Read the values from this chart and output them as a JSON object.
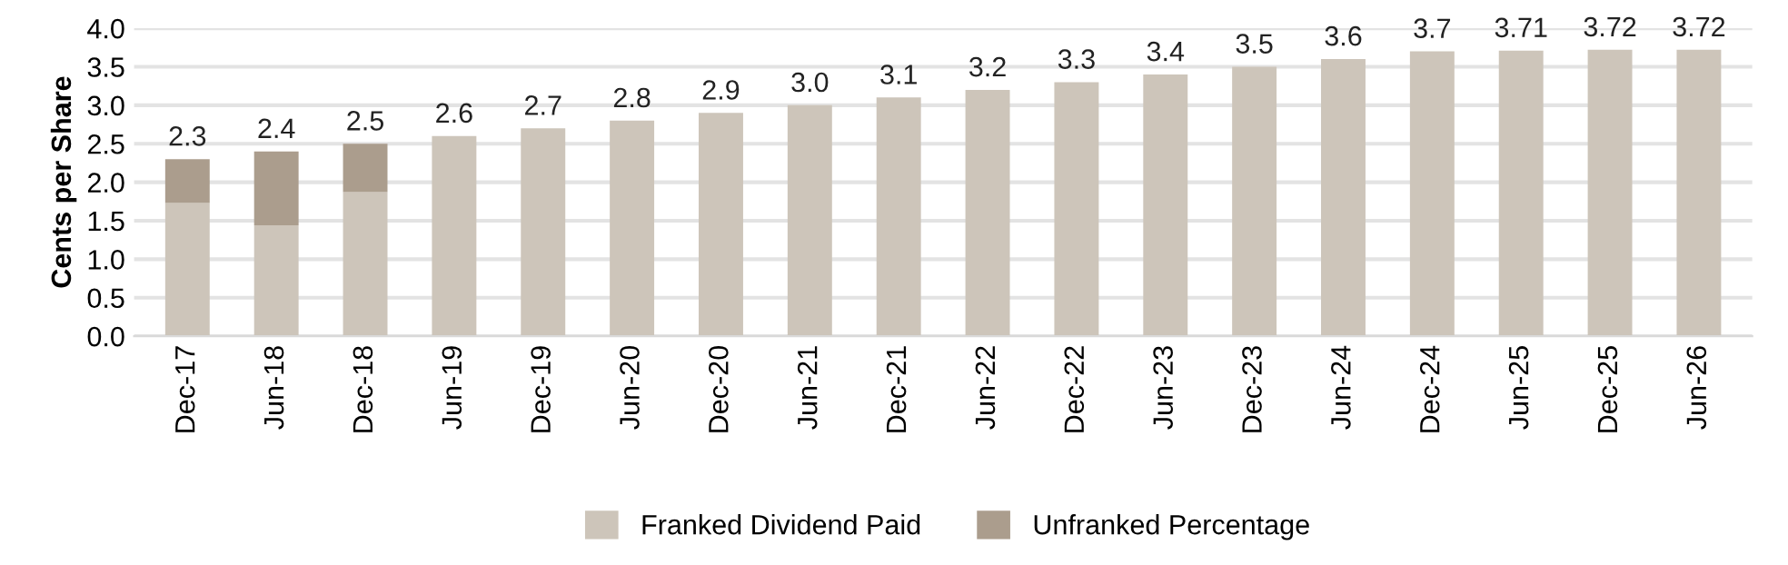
{
  "chart_data": {
    "type": "bar",
    "stacked": true,
    "ylabel": "Cents per Share",
    "categories": [
      "Dec-17",
      "Jun-18",
      "Dec-18",
      "Jun-19",
      "Dec-19",
      "Jun-20",
      "Dec-20",
      "Jun-21",
      "Dec-21",
      "Jun-22",
      "Dec-22",
      "Jun-23",
      "Dec-23",
      "Jun-24",
      "Dec-24",
      "Jun-25",
      "Dec-25",
      "Jun-26"
    ],
    "series": [
      {
        "name": "Franked Dividend Paid",
        "color": "#cdc5ba",
        "values": [
          1.73,
          1.44,
          1.87,
          2.6,
          2.7,
          2.8,
          2.9,
          3.0,
          3.1,
          3.2,
          3.3,
          3.4,
          3.5,
          3.6,
          3.7,
          3.71,
          3.72,
          3.72
        ]
      },
      {
        "name": "Unfranked Percentage",
        "color": "#ab9d8d",
        "values": [
          0.57,
          0.96,
          0.63,
          null,
          null,
          null,
          null,
          null,
          null,
          null,
          null,
          null,
          null,
          null,
          null,
          null,
          null,
          null
        ]
      }
    ],
    "totals": [
      "2.3",
      "2.4",
      "2.5",
      "2.6",
      "2.7",
      "2.8",
      "2.9",
      "3.0",
      "3.1",
      "3.2",
      "3.3",
      "3.4",
      "3.5",
      "3.6",
      "3.7",
      "3.71",
      "3.72",
      "3.72"
    ],
    "ylim": [
      0,
      4.0
    ],
    "yticks": [
      {
        "value": 0,
        "label": "0.0"
      },
      {
        "value": 0.5,
        "label": "0.5"
      },
      {
        "value": 1.0,
        "label": "1.0"
      },
      {
        "value": 1.5,
        "label": "1.5"
      },
      {
        "value": 2.0,
        "label": "2.0"
      },
      {
        "value": 2.5,
        "label": "2.5"
      },
      {
        "value": 3.0,
        "label": "3.0"
      },
      {
        "value": 3.5,
        "label": "3.5"
      },
      {
        "value": 4.0,
        "label": "4.0"
      }
    ],
    "grid": "y",
    "legend": "bottom"
  }
}
